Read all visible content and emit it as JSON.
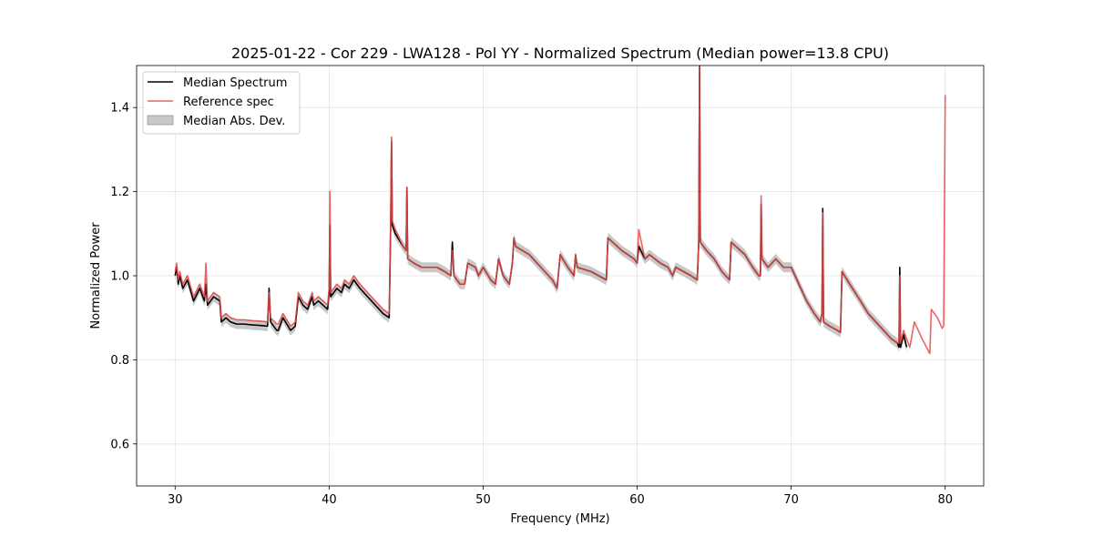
{
  "chart_data": {
    "type": "line",
    "title": "2025-01-22 - Cor 229 - LWA128 - Pol YY - Normalized Spectrum (Median power=13.8 CPU)",
    "xlabel": "Frequency (MHz)",
    "ylabel": "Normalized Power",
    "xlim": [
      27.5,
      82.5
    ],
    "ylim": [
      0.5,
      1.5
    ],
    "xticks": [
      30,
      40,
      50,
      60,
      70,
      80
    ],
    "yticks": [
      0.6,
      0.8,
      1.0,
      1.2,
      1.4
    ],
    "xtick_labels": [
      "30",
      "40",
      "50",
      "60",
      "70",
      "80"
    ],
    "ytick_labels": [
      "0.6",
      "0.8",
      "1.0",
      "1.2",
      "1.4"
    ],
    "grid": true,
    "legend_position": "top-left",
    "legend": [
      "Median Spectrum",
      "Reference spec",
      "Median Abs. Dev."
    ],
    "colors": {
      "median": "#000000",
      "reference": "#f05a5a",
      "mad": "#cccccc"
    },
    "series": [
      {
        "name": "Median Spectrum",
        "x": [
          30.0,
          30.1,
          30.2,
          30.3,
          30.5,
          30.8,
          31.2,
          31.6,
          31.9,
          32.0,
          32.1,
          32.5,
          32.9,
          33.0,
          33.3,
          33.6,
          34.0,
          34.5,
          35.0,
          35.5,
          36.0,
          36.1,
          36.2,
          36.6,
          36.7,
          37.0,
          37.5,
          37.8,
          38.0,
          38.3,
          38.6,
          38.9,
          39.0,
          39.3,
          39.6,
          39.9,
          40.0,
          40.05,
          40.1,
          40.5,
          40.8,
          41.0,
          41.3,
          41.6,
          42.0,
          42.5,
          43.0,
          43.5,
          43.9,
          44.0,
          44.05,
          44.1,
          44.3,
          44.8,
          45.0,
          45.05,
          45.1,
          45.5,
          46.0,
          46.5,
          47.0,
          47.5,
          47.9,
          48.0,
          48.1,
          48.5,
          48.8,
          49.0,
          49.5,
          49.7,
          50.0,
          50.5,
          50.8,
          51.0,
          51.3,
          51.7,
          51.9,
          52.0,
          52.1,
          53.0,
          53.5,
          54.0,
          54.5,
          54.8,
          55.0,
          55.5,
          55.9,
          56.0,
          56.1,
          57.0,
          57.5,
          58.0,
          58.1,
          59.0,
          59.8,
          60.0,
          60.1,
          60.5,
          60.8,
          61.5,
          62.0,
          62.3,
          62.5,
          63.0,
          63.5,
          63.9,
          64.0,
          64.05,
          64.1,
          64.5,
          65.0,
          65.5,
          66.0,
          66.1,
          67.0,
          67.5,
          67.9,
          68.0,
          68.05,
          68.1,
          68.5,
          69.0,
          69.5,
          70.0,
          70.5,
          71.0,
          71.5,
          71.9,
          72.0,
          72.05,
          72.1,
          72.5,
          73.0,
          73.2,
          73.3,
          73.8,
          74.5,
          75.0,
          75.5,
          76.0,
          76.5,
          76.9,
          77.0,
          77.05,
          77.1,
          77.3,
          77.5
        ],
        "y": [
          1.0,
          1.02,
          0.98,
          1.0,
          0.97,
          0.99,
          0.94,
          0.97,
          0.94,
          0.98,
          0.93,
          0.95,
          0.94,
          0.89,
          0.9,
          0.89,
          0.885,
          0.885,
          0.883,
          0.882,
          0.88,
          0.97,
          0.89,
          0.87,
          0.87,
          0.9,
          0.87,
          0.88,
          0.95,
          0.93,
          0.92,
          0.95,
          0.93,
          0.94,
          0.93,
          0.92,
          0.96,
          1.12,
          0.95,
          0.97,
          0.96,
          0.98,
          0.97,
          0.99,
          0.97,
          0.95,
          0.93,
          0.91,
          0.9,
          1.13,
          1.32,
          1.12,
          1.1,
          1.07,
          1.06,
          1.21,
          1.04,
          1.03,
          1.02,
          1.02,
          1.02,
          1.01,
          1.0,
          1.08,
          1.0,
          0.98,
          0.98,
          1.03,
          1.02,
          1.0,
          1.02,
          0.99,
          0.98,
          1.04,
          1.0,
          0.98,
          1.03,
          1.09,
          1.07,
          1.05,
          1.03,
          1.01,
          0.99,
          0.97,
          1.05,
          1.02,
          1.0,
          1.05,
          1.02,
          1.01,
          1.0,
          0.99,
          1.09,
          1.06,
          1.04,
          1.03,
          1.07,
          1.04,
          1.05,
          1.03,
          1.02,
          1.0,
          1.02,
          1.01,
          1.0,
          0.99,
          1.08,
          1.5,
          1.08,
          1.06,
          1.04,
          1.01,
          0.99,
          1.08,
          1.05,
          1.02,
          1.0,
          1.0,
          1.17,
          1.04,
          1.02,
          1.04,
          1.02,
          1.02,
          0.98,
          0.94,
          0.91,
          0.89,
          0.91,
          1.16,
          0.89,
          0.88,
          0.87,
          0.865,
          1.01,
          0.98,
          0.94,
          0.91,
          0.89,
          0.87,
          0.85,
          0.84,
          0.83,
          1.02,
          0.83,
          0.86,
          0.83
        ]
      },
      {
        "name": "Reference spec",
        "x": [
          30.0,
          30.1,
          30.2,
          30.3,
          30.5,
          30.8,
          31.2,
          31.6,
          31.9,
          32.0,
          32.1,
          32.5,
          32.9,
          33.0,
          33.3,
          33.6,
          34.0,
          34.5,
          35.0,
          35.5,
          36.0,
          36.1,
          36.2,
          36.6,
          36.7,
          37.0,
          37.5,
          37.8,
          38.0,
          38.3,
          38.6,
          38.9,
          39.0,
          39.3,
          39.6,
          39.9,
          40.0,
          40.05,
          40.1,
          40.5,
          40.8,
          41.0,
          41.3,
          41.6,
          42.0,
          42.5,
          43.0,
          43.5,
          43.9,
          44.0,
          44.05,
          44.1,
          44.3,
          44.8,
          45.0,
          45.05,
          45.1,
          45.5,
          46.0,
          46.5,
          47.0,
          47.5,
          47.9,
          48.0,
          48.1,
          48.5,
          48.8,
          49.0,
          49.5,
          49.7,
          50.0,
          50.5,
          50.8,
          51.0,
          51.3,
          51.7,
          51.9,
          52.0,
          52.1,
          53.0,
          53.5,
          54.0,
          54.5,
          54.8,
          55.0,
          55.5,
          55.9,
          56.0,
          56.1,
          57.0,
          57.5,
          58.0,
          58.1,
          59.0,
          59.8,
          60.0,
          60.1,
          60.5,
          60.8,
          61.5,
          62.0,
          62.3,
          62.5,
          63.0,
          63.5,
          63.9,
          64.0,
          64.05,
          64.1,
          64.5,
          65.0,
          65.5,
          66.0,
          66.1,
          67.0,
          67.5,
          67.9,
          68.0,
          68.05,
          68.1,
          68.5,
          69.0,
          69.5,
          70.0,
          70.5,
          71.0,
          71.5,
          71.9,
          72.0,
          72.05,
          72.1,
          72.5,
          73.0,
          73.2,
          73.3,
          73.8,
          74.5,
          75.0,
          75.5,
          76.0,
          76.5,
          76.9,
          77.0,
          77.05,
          77.1,
          77.3,
          77.5,
          77.7,
          78.0,
          78.5,
          79.0,
          79.1,
          79.5,
          79.8,
          79.9,
          80.0
        ],
        "y": [
          1.01,
          1.03,
          0.99,
          1.01,
          0.98,
          1.0,
          0.95,
          0.98,
          0.95,
          1.03,
          0.94,
          0.96,
          0.95,
          0.9,
          0.91,
          0.9,
          0.895,
          0.895,
          0.893,
          0.892,
          0.89,
          0.96,
          0.9,
          0.885,
          0.885,
          0.91,
          0.88,
          0.89,
          0.96,
          0.94,
          0.93,
          0.96,
          0.94,
          0.95,
          0.94,
          0.93,
          0.97,
          1.2,
          0.96,
          0.98,
          0.97,
          0.99,
          0.98,
          1.0,
          0.98,
          0.96,
          0.94,
          0.92,
          0.91,
          1.14,
          1.33,
          1.13,
          1.11,
          1.07,
          1.06,
          1.21,
          1.04,
          1.03,
          1.02,
          1.02,
          1.02,
          1.01,
          1.0,
          1.06,
          1.0,
          0.98,
          0.98,
          1.03,
          1.02,
          1.0,
          1.02,
          0.99,
          0.98,
          1.04,
          1.0,
          0.98,
          1.03,
          1.09,
          1.07,
          1.05,
          1.03,
          1.01,
          0.99,
          0.97,
          1.05,
          1.02,
          1.0,
          1.05,
          1.02,
          1.01,
          1.0,
          0.99,
          1.09,
          1.06,
          1.04,
          1.03,
          1.11,
          1.04,
          1.05,
          1.03,
          1.02,
          1.0,
          1.02,
          1.01,
          1.0,
          0.99,
          1.08,
          1.5,
          1.08,
          1.06,
          1.04,
          1.01,
          0.99,
          1.08,
          1.05,
          1.02,
          1.0,
          1.0,
          1.19,
          1.04,
          1.02,
          1.04,
          1.02,
          1.02,
          0.98,
          0.94,
          0.91,
          0.89,
          0.91,
          1.15,
          0.89,
          0.88,
          0.87,
          0.865,
          1.01,
          0.98,
          0.94,
          0.91,
          0.89,
          0.87,
          0.85,
          0.84,
          0.84,
          1.0,
          0.84,
          0.87,
          0.85,
          0.83,
          0.89,
          0.85,
          0.815,
          0.92,
          0.9,
          0.875,
          0.88,
          1.43
        ]
      }
    ]
  }
}
